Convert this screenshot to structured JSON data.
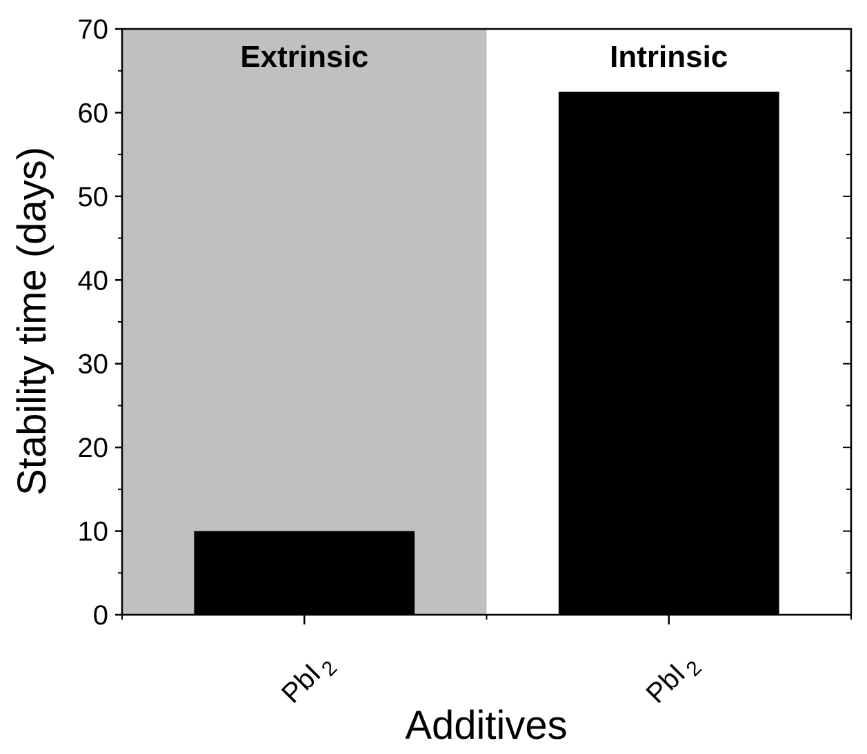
{
  "chart_data": {
    "type": "bar",
    "categories": [
      "PbI2",
      "PbI2"
    ],
    "category_labels": [
      {
        "main": "PbI",
        "sub": "2"
      },
      {
        "main": "PbI",
        "sub": "2"
      }
    ],
    "values": [
      10,
      62.5
    ],
    "ylabel": "Stability time (days)",
    "xlabel": "Additives",
    "ylim": [
      0,
      70
    ],
    "yticks": [
      0,
      10,
      20,
      30,
      40,
      50,
      60,
      70
    ],
    "regions": [
      {
        "label": "Extrinsic",
        "category_index": 0,
        "color": "#c0c0c0"
      },
      {
        "label": "Intrinsic",
        "category_index": 1,
        "color": "#ffffff"
      }
    ],
    "bar_color": "#000000",
    "grid": false,
    "legend": "none"
  }
}
